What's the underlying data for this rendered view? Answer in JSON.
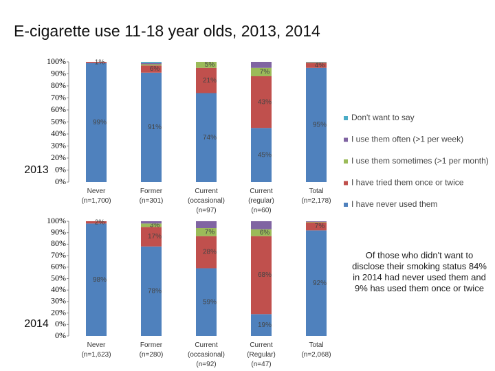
{
  "title": "E-cigarette use 11-18 year olds, 2013, 2014",
  "note": "Of those who didn't want to disclose their smoking status 84% in 2014 had never used them and 9% has used them once or twice",
  "chart_data": [
    {
      "type": "bar",
      "stacked": true,
      "title": "2013",
      "categories": [
        "Never\n(n=1,700)",
        "Former\n(n=301)",
        "Current\n(occasional)\n(n=97)",
        "Current\n(regular)\n(n=60)",
        "Total\n(n=2,178)"
      ],
      "ylim": [
        0,
        100
      ],
      "yticks": [
        {
          "value": 0,
          "label": "0%"
        },
        {
          "value": 10,
          "label": "10%"
        },
        {
          "value": 20,
          "label": "20%"
        },
        {
          "value": 30,
          "label": "30%"
        },
        {
          "value": 40,
          "label": "40%"
        },
        {
          "value": 50,
          "label": "50%"
        },
        {
          "value": 60,
          "label": "60%"
        },
        {
          "value": 70,
          "label": "70%"
        },
        {
          "value": 80,
          "label": "80%"
        },
        {
          "value": 90,
          "label": "90%"
        },
        {
          "value": 100,
          "label": "100%"
        }
      ],
      "series": [
        {
          "name": "I have never used them",
          "color": "#4f81bd",
          "values": [
            99,
            91,
            74,
            45,
            95
          ],
          "value_labels": [
            "99%",
            "91%",
            "74%",
            "45%",
            "95%"
          ]
        },
        {
          "name": "I have tried them once or twice",
          "color": "#c0504d",
          "values": [
            1,
            6,
            21,
            43,
            4
          ],
          "value_labels": [
            "1%",
            "6%",
            "21%",
            "43%",
            "4%"
          ]
        },
        {
          "name": "I use them sometimes (>1 per month)",
          "color": "#9bbb59",
          "values": [
            0,
            1,
            5,
            7,
            0.5
          ],
          "value_labels": [
            null,
            null,
            "5%",
            "7%",
            null
          ]
        },
        {
          "name": "I use them often (>1 per week)",
          "color": "#8064a2",
          "values": [
            0,
            1,
            0,
            5,
            0.5
          ],
          "value_labels": [
            null,
            null,
            null,
            null,
            null
          ]
        },
        {
          "name": "Don't want to say",
          "color": "#4bacc6",
          "values": [
            0,
            1,
            0,
            0,
            0
          ],
          "value_labels": [
            null,
            null,
            null,
            null,
            null
          ]
        }
      ]
    },
    {
      "type": "bar",
      "stacked": true,
      "title": "2014",
      "categories": [
        "Never\n(n=1,623)",
        "Former\n(n=280)",
        "Current\n(occasional)\n(n=92)",
        "Current\n(Regular)\n(n=47)",
        "Total\n(n=2,068)"
      ],
      "ylim": [
        0,
        100
      ],
      "yticks": [
        {
          "value": 0,
          "label": "0%"
        },
        {
          "value": 10,
          "label": "10%"
        },
        {
          "value": 20,
          "label": "20%"
        },
        {
          "value": 30,
          "label": "30%"
        },
        {
          "value": 40,
          "label": "40%"
        },
        {
          "value": 50,
          "label": "50%"
        },
        {
          "value": 60,
          "label": "60%"
        },
        {
          "value": 70,
          "label": "70%"
        },
        {
          "value": 80,
          "label": "80%"
        },
        {
          "value": 90,
          "label": "90%"
        },
        {
          "value": 100,
          "label": "100%"
        }
      ],
      "series": [
        {
          "name": "I have never used them",
          "color": "#4f81bd",
          "values": [
            98,
            78,
            59,
            19,
            92
          ],
          "value_labels": [
            "98%",
            "78%",
            "59%",
            "19%",
            "92%"
          ]
        },
        {
          "name": "I have tried them once or twice",
          "color": "#c0504d",
          "values": [
            2,
            17,
            28,
            68,
            7
          ],
          "value_labels": [
            "2%",
            "17%",
            "28%",
            "68%",
            "7%"
          ]
        },
        {
          "name": "I use them sometimes (>1 per month)",
          "color": "#9bbb59",
          "values": [
            0,
            3,
            7,
            6,
            0.5
          ],
          "value_labels": [
            null,
            "3%",
            "7%",
            "6%",
            null
          ]
        },
        {
          "name": "I use them often (>1 per week)",
          "color": "#8064a2",
          "values": [
            0,
            2,
            6,
            7,
            0.5
          ],
          "value_labels": [
            null,
            null,
            null,
            null,
            null
          ]
        },
        {
          "name": "Don't want to say",
          "color": "#4bacc6",
          "values": [
            0,
            0,
            0,
            0,
            0
          ],
          "value_labels": [
            null,
            null,
            null,
            null,
            null
          ]
        }
      ]
    }
  ]
}
